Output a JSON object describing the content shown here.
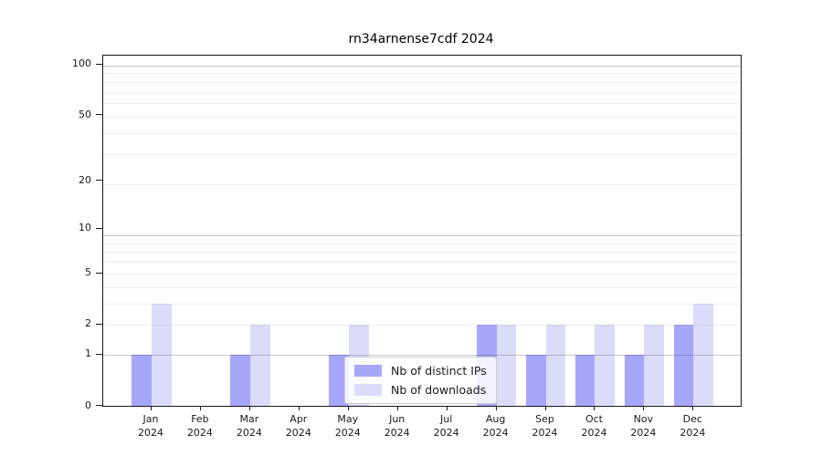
{
  "title": "rn34arnense7cdf 2024",
  "chart_data": {
    "type": "bar",
    "title": "rn34arnense7cdf 2024",
    "categories": [
      "Jan",
      "Feb",
      "Mar",
      "Apr",
      "May",
      "Jun",
      "Jul",
      "Aug",
      "Sep",
      "Oct",
      "Nov",
      "Dec"
    ],
    "x_tick_year": "2024",
    "series": [
      {
        "name": "Nb of distinct IPs",
        "color": "#a7a7fa",
        "values": [
          1,
          0,
          1,
          0,
          1,
          0,
          0,
          2,
          1,
          1,
          1,
          2
        ]
      },
      {
        "name": "Nb of downloads",
        "color": "#dbdbfa",
        "values": [
          3,
          0,
          2,
          0,
          2,
          0,
          0,
          2,
          2,
          2,
          2,
          3
        ]
      }
    ],
    "yticks": [
      0,
      1,
      2,
      5,
      10,
      20,
      50,
      100
    ],
    "yscale": "log1p",
    "ylim": [
      0,
      113
    ],
    "xlabel": "",
    "ylabel": "",
    "grid": "horizontal-both",
    "legend_position": "lower-center-inside"
  }
}
